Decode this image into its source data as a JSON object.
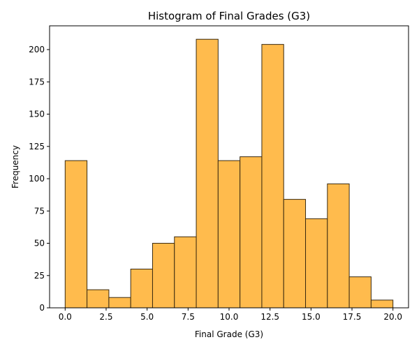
{
  "chart_data": {
    "type": "bar",
    "histogram": true,
    "title": "Histogram of Final Grades (G3)",
    "xlabel": "Final Grade (G3)",
    "ylabel": "Frequency",
    "xlim": [
      -0.95,
      20.95
    ],
    "ylim": [
      0,
      218.4
    ],
    "xticks": [
      0,
      2.5,
      5,
      7.5,
      10,
      12.5,
      15,
      17.5,
      20
    ],
    "xtick_labels": [
      "0.0",
      "2.5",
      "5.0",
      "7.5",
      "10.0",
      "12.5",
      "15.0",
      "17.5",
      "20.0"
    ],
    "yticks": [
      0,
      25,
      50,
      75,
      100,
      125,
      150,
      175,
      200
    ],
    "ytick_labels": [
      "0",
      "25",
      "50",
      "75",
      "100",
      "125",
      "150",
      "175",
      "200"
    ],
    "bin_edges": [
      0,
      1.333,
      2.667,
      4,
      5.333,
      6.667,
      8,
      9.333,
      10.667,
      12,
      13.333,
      14.667,
      16,
      17.333,
      18.667,
      20
    ],
    "values": [
      114,
      14,
      8,
      30,
      50,
      55,
      208,
      114,
      117,
      204,
      84,
      69,
      96,
      24,
      6
    ],
    "bar_color": "#FFBB4D",
    "edge_color": "#3a2a10",
    "grid": false,
    "legend": null
  }
}
